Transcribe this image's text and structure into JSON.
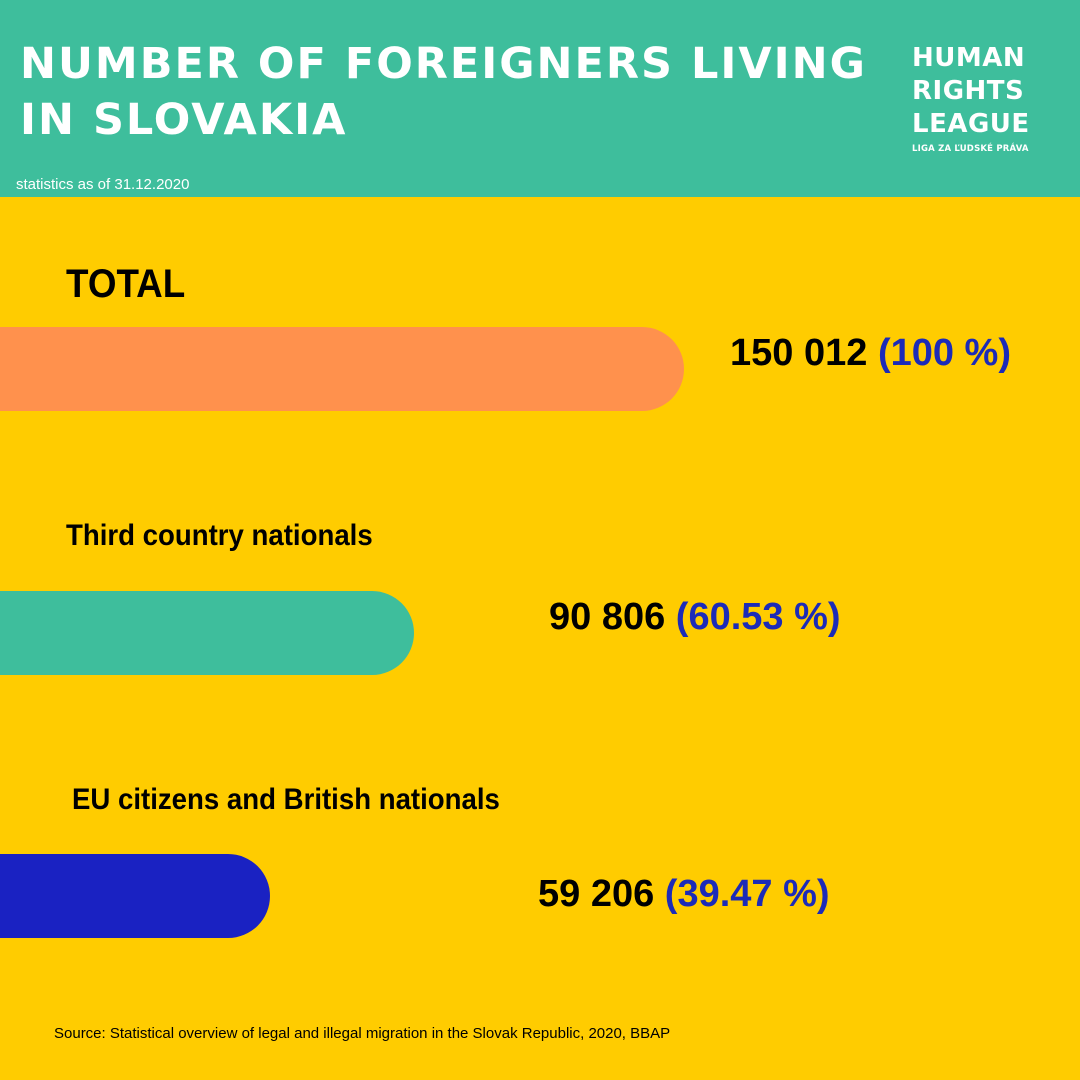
{
  "header": {
    "title": "NUMBER OF FOREIGNERS LIVING IN SLOVAKIA",
    "subtitle": "statistics as of 31.12.2020",
    "logo_lines": [
      "HUMAN",
      "RIGHTS",
      "LEAGUE"
    ],
    "logo_subline": "LIGA ZA ĽUDSKÉ PRÁVA"
  },
  "colors": {
    "header_bg": "#3ebe9c",
    "page_bg": "#ffcc00",
    "percent_text": "#1c2bb8"
  },
  "chart_data": {
    "type": "bar",
    "orientation": "horizontal",
    "categories": [
      "TOTAL",
      "Third country nationals",
      "EU citizens and British nationals"
    ],
    "values": [
      150012,
      90806,
      59206
    ],
    "value_labels": [
      "150 012",
      "90 806",
      "59 206"
    ],
    "percent_labels": [
      "(100 %)",
      "(60.53 %)",
      "(39.47 %)"
    ],
    "bar_colors": [
      "#ff914d",
      "#3ebe9c",
      "#1a22c2"
    ],
    "xlim": [
      0,
      150012
    ]
  },
  "footer": {
    "source": "Source: Statistical overview of legal and illegal migration in the Slovak Republic, 2020, BBAP"
  }
}
